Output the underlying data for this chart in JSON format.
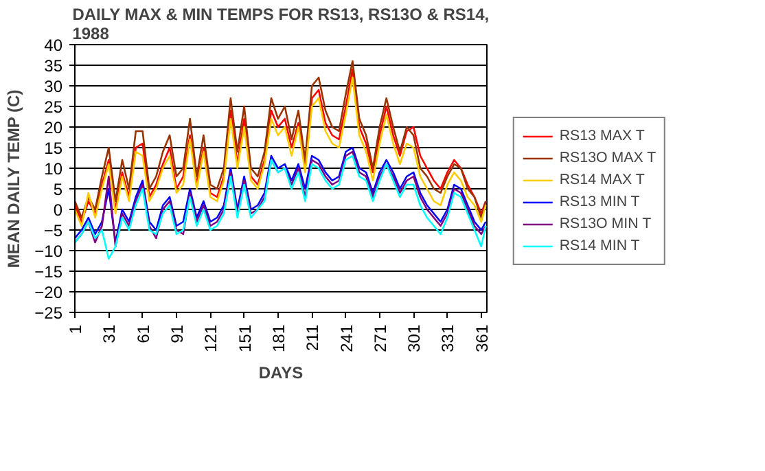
{
  "chart_data": {
    "type": "line",
    "title": "DAILY MAX & MIN TEMPS FOR RS13, RS13O & RS14, 1988",
    "xlabel": "DAYS",
    "ylabel": "MEAN DAILY TEMP (C)",
    "x": [
      1,
      7,
      13,
      19,
      25,
      31,
      37,
      43,
      49,
      55,
      61,
      67,
      73,
      79,
      85,
      91,
      97,
      103,
      109,
      115,
      121,
      127,
      133,
      139,
      145,
      151,
      157,
      163,
      169,
      175,
      181,
      187,
      193,
      199,
      205,
      211,
      217,
      223,
      229,
      235,
      241,
      247,
      253,
      259,
      265,
      271,
      277,
      283,
      289,
      295,
      301,
      307,
      313,
      319,
      325,
      331,
      337,
      343,
      349,
      355,
      361,
      365
    ],
    "xlim": [
      1,
      366
    ],
    "xticks": [
      1,
      31,
      61,
      91,
      121,
      151,
      181,
      211,
      241,
      271,
      301,
      331,
      361
    ],
    "ylim": [
      -25,
      40
    ],
    "yticks": [
      -25,
      -20,
      -15,
      -10,
      -5,
      0,
      5,
      10,
      15,
      20,
      25,
      30,
      35,
      40
    ],
    "grid": "y",
    "legend": "right",
    "series": [
      {
        "name": "RS13 MAX T",
        "color": "#ff0000",
        "values": [
          1,
          -3,
          2,
          -1,
          6,
          12,
          0,
          9,
          3,
          15,
          16,
          3,
          6,
          11,
          15,
          5,
          8,
          18,
          6,
          15,
          4,
          3,
          8,
          24,
          11,
          22,
          8,
          6,
          12,
          24,
          20,
          22,
          15,
          21,
          10,
          27,
          29,
          21,
          18,
          17,
          25,
          34,
          20,
          16,
          9,
          18,
          25,
          18,
          13,
          19,
          20,
          13,
          10,
          7,
          5,
          9,
          12,
          10,
          6,
          3,
          -1,
          2
        ]
      },
      {
        "name": "RS13O MAX T",
        "color": "#993300",
        "values": [
          2,
          -2,
          3,
          0,
          8,
          15,
          2,
          12,
          5,
          19,
          19,
          5,
          8,
          14,
          18,
          8,
          10,
          22,
          8,
          18,
          6,
          5,
          10,
          27,
          14,
          25,
          10,
          8,
          14,
          27,
          22,
          25,
          17,
          24,
          12,
          30,
          32,
          24,
          20,
          19,
          28,
          36,
          22,
          18,
          10,
          20,
          27,
          20,
          14,
          20,
          18,
          10,
          8,
          5,
          4,
          8,
          11,
          10,
          5,
          3,
          -2,
          2
        ]
      },
      {
        "name": "RS14 MAX T",
        "color": "#ffcc00",
        "values": [
          0,
          -4,
          4,
          -2,
          5,
          11,
          -1,
          8,
          2,
          14,
          13,
          2,
          5,
          10,
          13,
          4,
          6,
          17,
          5,
          14,
          3,
          2,
          7,
          22,
          10,
          20,
          7,
          5,
          11,
          22,
          18,
          20,
          13,
          20,
          9,
          25,
          27,
          19,
          16,
          15,
          23,
          32,
          18,
          14,
          7,
          16,
          23,
          16,
          11,
          16,
          15,
          8,
          5,
          2,
          1,
          6,
          9,
          7,
          3,
          1,
          -3,
          1
        ]
      },
      {
        "name": "RS13 MIN T",
        "color": "#0000ff",
        "values": [
          -7,
          -5,
          -2,
          -6,
          -3,
          5,
          -8,
          0,
          -3,
          3,
          7,
          -3,
          -5,
          1,
          3,
          -4,
          -3,
          5,
          -2,
          2,
          -3,
          -2,
          1,
          10,
          0,
          8,
          0,
          1,
          4,
          13,
          10,
          11,
          7,
          11,
          5,
          13,
          12,
          9,
          7,
          8,
          14,
          15,
          10,
          9,
          4,
          9,
          12,
          9,
          5,
          8,
          9,
          4,
          1,
          -1,
          -3,
          0,
          6,
          5,
          1,
          -3,
          -5,
          -3
        ]
      },
      {
        "name": "RS13O MIN T",
        "color": "#800080",
        "values": [
          -8,
          -6,
          -3,
          -8,
          -4,
          8,
          -9,
          -1,
          -4,
          2,
          6,
          -4,
          -7,
          0,
          2,
          -5,
          -6,
          4,
          -3,
          1,
          -4,
          -3,
          0,
          9,
          -1,
          7,
          -1,
          0,
          3,
          12,
          9,
          10,
          6,
          10,
          3,
          12,
          11,
          8,
          6,
          7,
          13,
          14,
          9,
          8,
          3,
          8,
          11,
          8,
          4,
          7,
          8,
          3,
          0,
          -2,
          -4,
          -1,
          5,
          4,
          0,
          -4,
          -6,
          -4
        ]
      },
      {
        "name": "RS14 MIN T",
        "color": "#00ffff",
        "values": [
          -8,
          -6,
          -3,
          -7,
          -5,
          -12,
          -9,
          -2,
          -5,
          1,
          5,
          -5,
          -6,
          -1,
          1,
          -6,
          -5,
          3,
          -4,
          0,
          -5,
          -4,
          -1,
          8,
          -2,
          6,
          -2,
          0,
          2,
          12,
          9,
          10,
          5,
          9,
          2,
          11,
          10,
          7,
          5,
          6,
          12,
          13,
          8,
          7,
          2,
          7,
          11,
          7,
          3,
          6,
          6,
          1,
          -2,
          -4,
          -6,
          -2,
          4,
          3,
          -1,
          -5,
          -9,
          -4
        ]
      }
    ]
  }
}
